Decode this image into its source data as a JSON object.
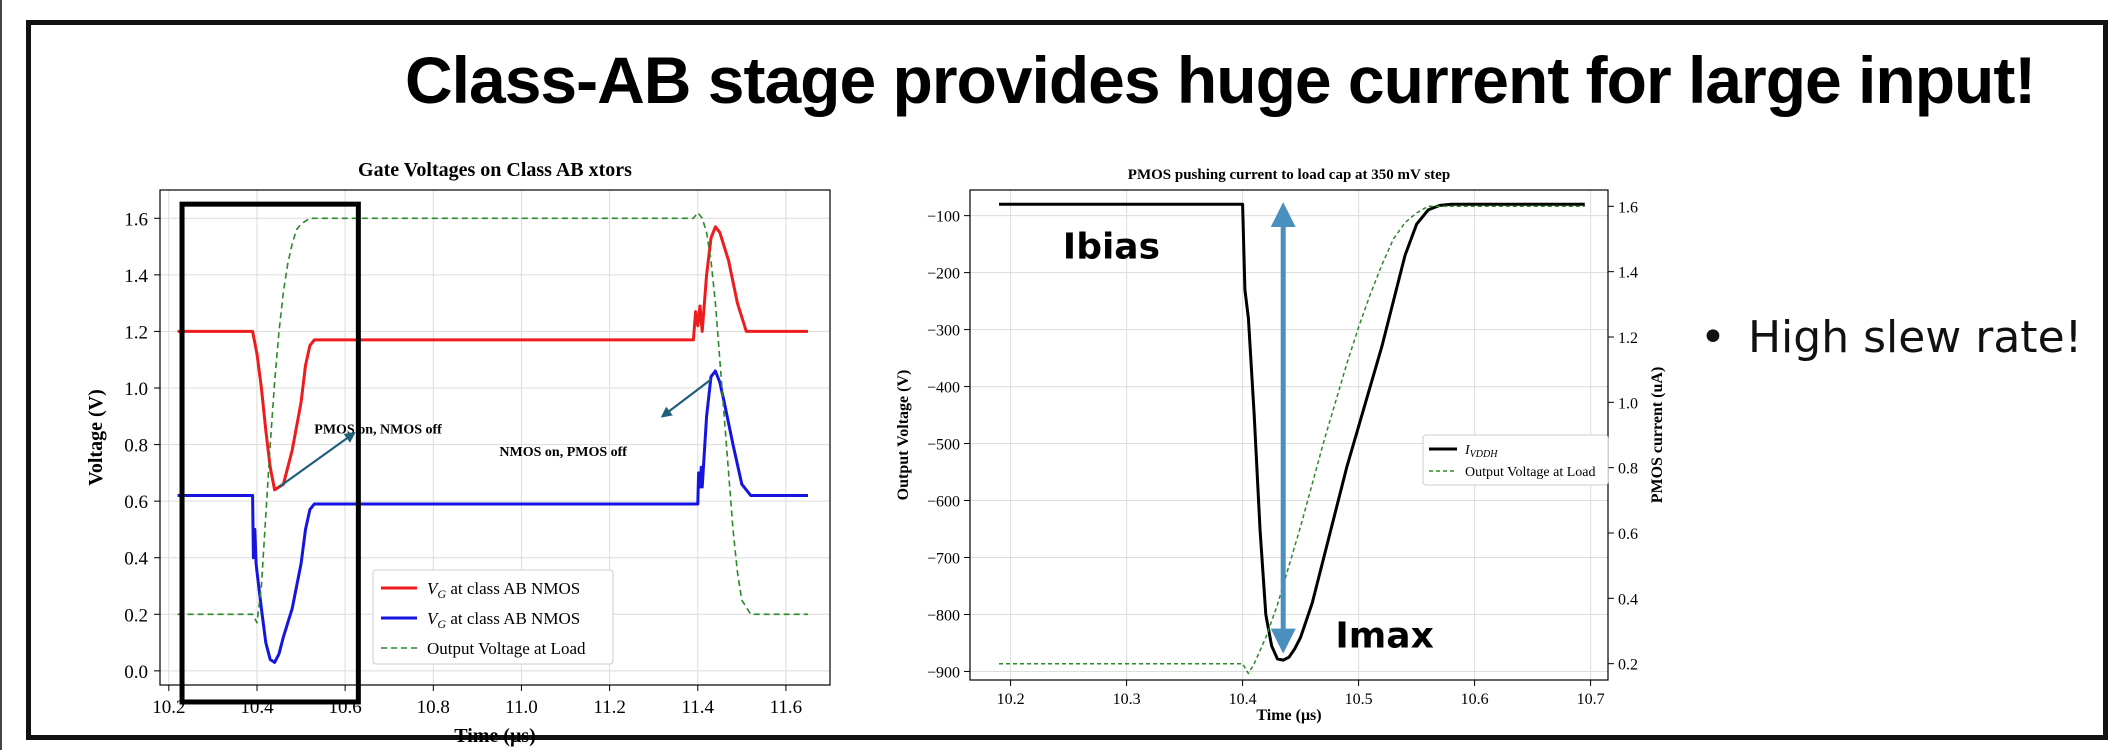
{
  "slide": {
    "title": "Class-AB stage provides huge current for large input!",
    "bullets": [
      "High slew rate!"
    ],
    "bullet_symbol": "•"
  },
  "colors": {
    "red": "#ee1c1c",
    "blue": "#1515e0",
    "green": "#2a8a2a",
    "black": "#000000",
    "arrow_teal": "#1f5f7a",
    "arrow_blue": "#4a8fc0"
  },
  "chart_data": [
    {
      "type": "line",
      "title": "Gate Voltages on Class AB xtors",
      "xlabel": "Time (μs)",
      "ylabel": "Voltage (V)",
      "xlim": [
        10.18,
        11.7
      ],
      "ylim": [
        -0.05,
        1.7
      ],
      "xticks": [
        "10.2",
        "10.4",
        "10.6",
        "10.8",
        "11.0",
        "11.2",
        "11.4",
        "11.6"
      ],
      "xtick_values": [
        10.2,
        10.4,
        10.6,
        10.8,
        11.0,
        11.2,
        11.4,
        11.6
      ],
      "yticks": [
        "0.0",
        "0.2",
        "0.4",
        "0.6",
        "0.8",
        "1.0",
        "1.2",
        "1.4",
        "1.6"
      ],
      "ytick_values": [
        0.0,
        0.2,
        0.4,
        0.6,
        0.8,
        1.0,
        1.2,
        1.4,
        1.6
      ],
      "grid": true,
      "legend_position": "lower-center",
      "series": [
        {
          "name": "VG at class AB NMOS",
          "legend_main": "V",
          "legend_sub": "G",
          "legend_rest": " at class AB NMOS",
          "color": "red",
          "style": "solid",
          "x": [
            10.22,
            10.39,
            10.4,
            10.41,
            10.42,
            10.43,
            10.44,
            10.46,
            10.48,
            10.5,
            10.51,
            10.52,
            10.53,
            11.39,
            11.395,
            11.4,
            11.405,
            11.41,
            11.42,
            11.43,
            11.44,
            11.45,
            11.47,
            11.49,
            11.51,
            11.53,
            11.65
          ],
          "y": [
            1.2,
            1.2,
            1.12,
            1.0,
            0.85,
            0.72,
            0.64,
            0.66,
            0.78,
            0.95,
            1.08,
            1.15,
            1.17,
            1.17,
            1.27,
            1.22,
            1.29,
            1.2,
            1.4,
            1.53,
            1.57,
            1.55,
            1.45,
            1.3,
            1.2,
            1.2,
            1.2
          ]
        },
        {
          "name": "VG at class AB NMOS",
          "legend_main": "V",
          "legend_sub": "G",
          "legend_rest": " at class AB NMOS",
          "color": "blue",
          "style": "solid",
          "x": [
            10.22,
            10.39,
            10.392,
            10.395,
            10.398,
            10.4,
            10.41,
            10.42,
            10.43,
            10.44,
            10.45,
            10.46,
            10.48,
            10.5,
            10.51,
            10.52,
            10.53,
            11.4,
            11.402,
            11.405,
            11.408,
            11.41,
            11.42,
            11.43,
            11.44,
            11.45,
            11.46,
            11.48,
            11.5,
            11.52,
            11.54,
            11.65
          ],
          "y": [
            0.62,
            0.62,
            0.4,
            0.5,
            0.38,
            0.35,
            0.22,
            0.1,
            0.04,
            0.03,
            0.06,
            0.12,
            0.22,
            0.38,
            0.5,
            0.57,
            0.59,
            0.59,
            0.7,
            0.65,
            0.72,
            0.65,
            0.9,
            1.04,
            1.06,
            1.02,
            0.95,
            0.8,
            0.66,
            0.62,
            0.62,
            0.62
          ]
        },
        {
          "name": "Output Voltage at Load",
          "color": "green",
          "style": "dashed",
          "x": [
            10.22,
            10.39,
            10.4,
            10.41,
            10.42,
            10.43,
            10.44,
            10.45,
            10.46,
            10.47,
            10.48,
            10.49,
            10.5,
            10.51,
            10.52,
            10.53,
            11.38,
            11.39,
            11.4,
            11.41,
            11.42,
            11.43,
            11.44,
            11.45,
            11.46,
            11.47,
            11.48,
            11.49,
            11.5,
            11.52,
            11.65
          ],
          "y": [
            0.2,
            0.2,
            0.17,
            0.3,
            0.55,
            0.8,
            1.02,
            1.2,
            1.34,
            1.44,
            1.51,
            1.56,
            1.58,
            1.59,
            1.6,
            1.6,
            1.6,
            1.6,
            1.62,
            1.6,
            1.55,
            1.45,
            1.3,
            1.1,
            0.9,
            0.7,
            0.5,
            0.35,
            0.25,
            0.2,
            0.2
          ]
        }
      ],
      "annotations": [
        {
          "text": "PMOS on, NMOS off",
          "x": 10.53,
          "y": 0.84,
          "arrow_from": [
            10.45,
            0.65
          ],
          "arrow_to": [
            10.62,
            0.84
          ]
        },
        {
          "text": "NMOS on, PMOS off",
          "x": 10.95,
          "y": 0.76,
          "arrow_from": [
            11.43,
            1.03
          ],
          "arrow_to": [
            11.32,
            0.9
          ]
        }
      ],
      "highlight_box": {
        "x0": 10.23,
        "x1": 10.63,
        "y0": -0.11,
        "y1": 1.65,
        "color": "black"
      }
    },
    {
      "type": "line",
      "title": "PMOS pushing current to load cap at 350 mV step",
      "xlabel": "Time (μs)",
      "ylabel": "Output Voltage (V)",
      "y2label": "PMOS current (uA)",
      "xlim": [
        10.165,
        10.715
      ],
      "ylim": [
        -915,
        -55
      ],
      "y2lim": [
        0.15,
        1.65
      ],
      "xticks": [
        "10.2",
        "10.3",
        "10.4",
        "10.5",
        "10.6",
        "10.7"
      ],
      "xtick_values": [
        10.2,
        10.3,
        10.4,
        10.5,
        10.6,
        10.7
      ],
      "yticks": [
        "−100",
        "−200",
        "−300",
        "−400",
        "−500",
        "−600",
        "−700",
        "−800",
        "−900"
      ],
      "ytick_values": [
        -100,
        -200,
        -300,
        -400,
        -500,
        -600,
        -700,
        -800,
        -900
      ],
      "y2ticks": [
        "0.2",
        "0.4",
        "0.6",
        "0.8",
        "1.0",
        "1.2",
        "1.4",
        "1.6"
      ],
      "y2tick_values": [
        0.2,
        0.4,
        0.6,
        0.8,
        1.0,
        1.2,
        1.4,
        1.6
      ],
      "grid": true,
      "legend_position": "center-right",
      "series": [
        {
          "name": "IVDDH",
          "legend_main": "I",
          "legend_sub": "VDDH",
          "legend_rest": "",
          "color": "black",
          "style": "solid",
          "axis": "left",
          "x": [
            10.19,
            10.4,
            10.402,
            10.405,
            10.41,
            10.415,
            10.42,
            10.425,
            10.43,
            10.435,
            10.44,
            10.445,
            10.45,
            10.46,
            10.47,
            10.48,
            10.49,
            10.5,
            10.51,
            10.52,
            10.53,
            10.54,
            10.55,
            10.56,
            10.57,
            10.58,
            10.6,
            10.695
          ],
          "y": [
            -80,
            -80,
            -230,
            -280,
            -450,
            -650,
            -800,
            -855,
            -878,
            -880,
            -875,
            -860,
            -840,
            -780,
            -700,
            -620,
            -540,
            -470,
            -400,
            -330,
            -250,
            -170,
            -115,
            -90,
            -82,
            -80,
            -80,
            -80
          ]
        },
        {
          "name": "Output Voltage at Load",
          "color": "green",
          "style": "dashed",
          "axis": "right",
          "x": [
            10.19,
            10.4,
            10.405,
            10.41,
            10.42,
            10.43,
            10.44,
            10.45,
            10.46,
            10.47,
            10.48,
            10.49,
            10.5,
            10.51,
            10.52,
            10.53,
            10.54,
            10.55,
            10.56,
            10.57,
            10.6,
            10.695
          ],
          "y": [
            0.2,
            0.2,
            0.17,
            0.2,
            0.28,
            0.38,
            0.5,
            0.62,
            0.75,
            0.88,
            1.0,
            1.12,
            1.23,
            1.33,
            1.42,
            1.5,
            1.55,
            1.58,
            1.6,
            1.6,
            1.6,
            1.6
          ]
        }
      ],
      "annotations": [
        {
          "text": "Ibias",
          "x": 10.245,
          "y": -175
        },
        {
          "text": "Imax",
          "x": 10.48,
          "y": -858
        }
      ],
      "double_arrow": {
        "x": 10.435,
        "y_top": -85,
        "y_bottom": -860,
        "color": "arrow_blue"
      }
    }
  ]
}
